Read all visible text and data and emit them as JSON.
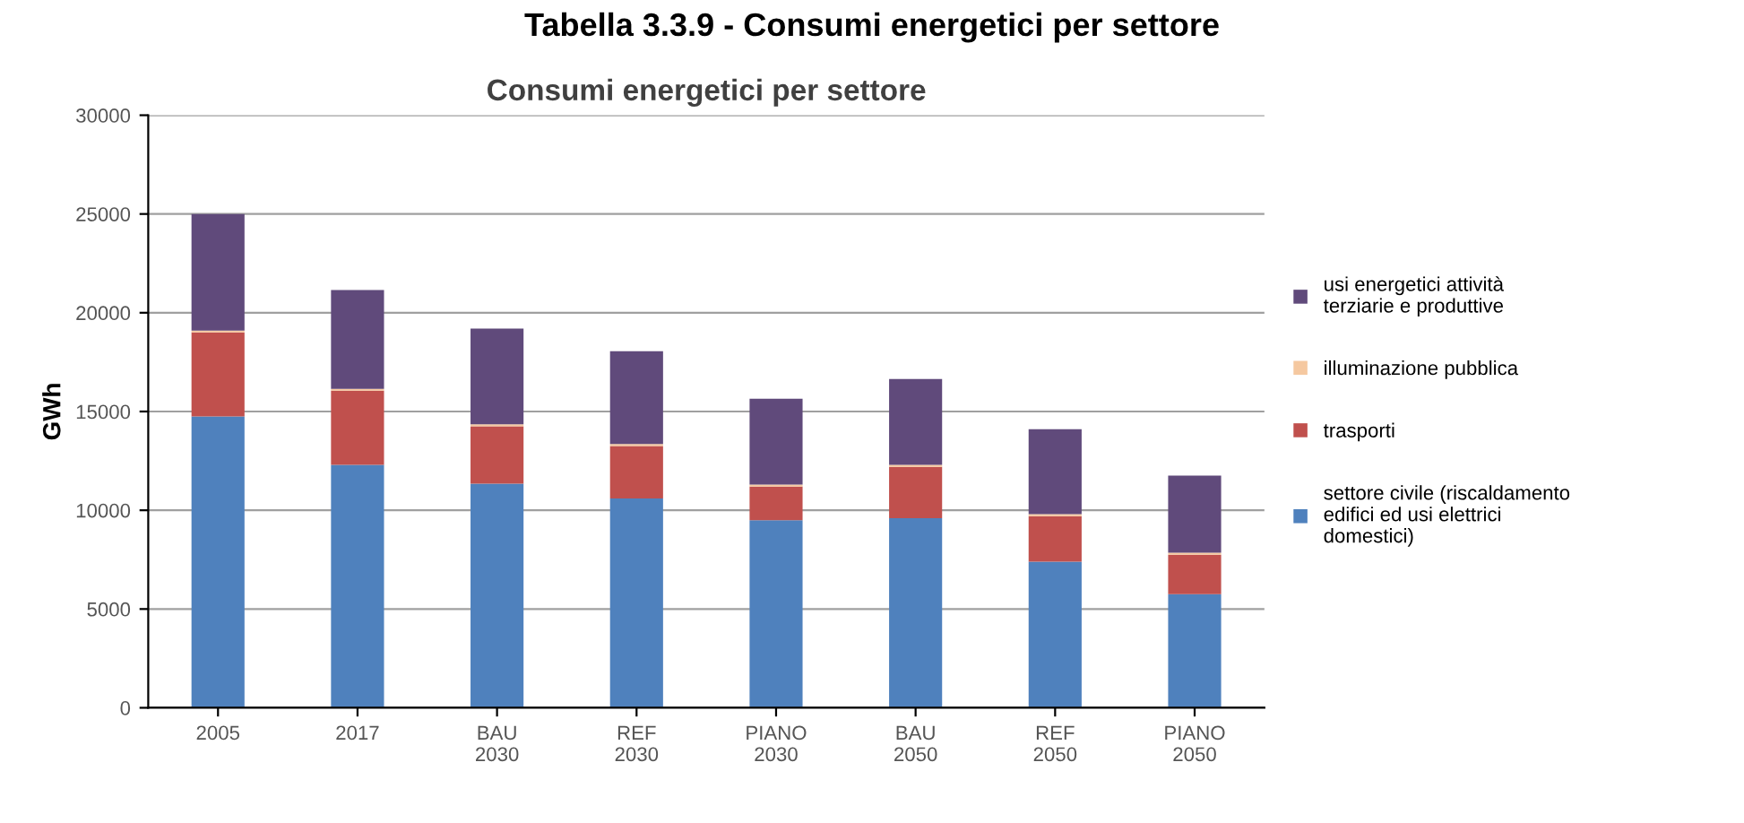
{
  "chart_data": {
    "type": "bar",
    "title": "Tabella 3.3.9 - Consumi energetici per settore",
    "subtitle": "Consumi energetici per settore",
    "ylabel": "GWh",
    "categories": [
      "2005",
      "2017",
      "BAU\n2030",
      "REF\n2030",
      "PIANO\n2030",
      "BAU\n2050",
      "REF\n2050",
      "PIANO\n2050"
    ],
    "stacked": true,
    "series": [
      {
        "name": "settore civile (riscaldamento\nedifici ed usi elettrici\ndomestici)",
        "color": "#4f81bd",
        "values": [
          14750,
          12300,
          11350,
          10600,
          9500,
          9600,
          7400,
          5750
        ]
      },
      {
        "name": "trasporti",
        "color": "#c0504d",
        "values": [
          4250,
          3750,
          2900,
          2650,
          1700,
          2600,
          2300,
          2000
        ]
      },
      {
        "name": "illuminazione pubblica",
        "color": "#f5c8a0",
        "values": [
          100,
          100,
          100,
          100,
          100,
          100,
          100,
          100
        ]
      },
      {
        "name": "usi energetici attività\nterziarie e produttive",
        "color": "#604a7b",
        "values": [
          5900,
          5000,
          4850,
          4700,
          4350,
          4350,
          4300,
          3900
        ]
      }
    ],
    "ylim": [
      0,
      30000
    ],
    "yticks": [
      0,
      5000,
      10000,
      15000,
      20000,
      25000,
      30000
    ],
    "grid": "y",
    "legend": "right"
  }
}
